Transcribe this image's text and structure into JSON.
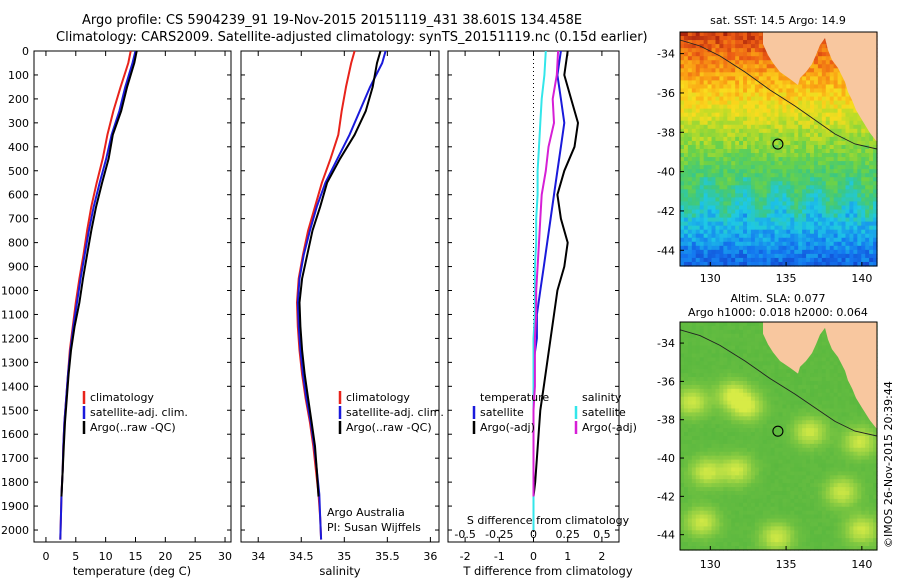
{
  "title": {
    "line1": "Argo profile: CS 5904239_91 19-Nov-2015 20151119_431 38.601S 134.458E",
    "line2": "Climatology: CARS2009. Satellite-adjusted climatology: synTS_20151119.nc (0.15d earlier)"
  },
  "colors": {
    "climatology": "#e8231b",
    "satellite": "#1a1adb",
    "argo": "#000000",
    "cyan": "#33e6ea",
    "magenta": "#d61fd6",
    "land": "#f8c79f"
  },
  "credits": {
    "argo_australia": "Argo Australia",
    "pi": "PI: Susan Wijffels",
    "imos": "©IMOS 26-Nov-2015 20:39:44"
  },
  "panels": {
    "temperature": {
      "xlabel": "temperature (deg C)",
      "legend": [
        "climatology",
        "satellite-adj. clim.",
        "Argo(..raw -QC)"
      ]
    },
    "salinity": {
      "xlabel": "salinity",
      "legend": [
        "climatology",
        "satellite-adj. clim.",
        "Argo(..raw -QC)"
      ]
    },
    "difference": {
      "xlabel_bottom": "T difference from climatology",
      "xlabel_top": "S difference from climatology",
      "legend_temp_title": "temperature",
      "legend_sal_title": "salinity",
      "legend_temp": [
        "satellite",
        "Argo(-adj)"
      ],
      "legend_sal": [
        "satellite",
        "Argo(-adj)"
      ]
    },
    "sst_map": {
      "title": "sat. SST: 14.5 Argo: 14.9",
      "xticks": [
        "130",
        "135",
        "140"
      ],
      "yticks": [
        "-34",
        "-36",
        "-38",
        "-40",
        "-42",
        "-44"
      ]
    },
    "sla_map": {
      "title_line1": "Altim. SLA: 0.077",
      "title_line2": "Argo h1000: 0.018 h2000: 0.064",
      "xticks": [
        "130",
        "135",
        "140"
      ],
      "yticks": [
        "-34",
        "-36",
        "-38",
        "-40",
        "-42",
        "-44"
      ]
    }
  },
  "chart_data": [
    {
      "type": "line",
      "title": "Argo profile: CS 5904239_91 19-Nov-2015 20151119_431 38.601S 134.458E",
      "xlabel": "temperature (deg C)",
      "ylabel": "",
      "xlim": [
        -2,
        31
      ],
      "ylim": [
        2050,
        0
      ],
      "xticks": [
        0,
        5,
        10,
        15,
        20,
        25,
        30
      ],
      "yticks": [
        0,
        100,
        200,
        300,
        400,
        500,
        600,
        700,
        800,
        900,
        1000,
        1100,
        1200,
        1300,
        1400,
        1500,
        1600,
        1700,
        1800,
        1900,
        2000
      ],
      "legend_position": "lower-center",
      "series": [
        {
          "name": "climatology",
          "color": "#e8231b",
          "x": [
            14.2,
            13.8,
            12.5,
            11.3,
            10.3,
            9.5,
            8.5,
            7.6,
            6.9,
            6.3,
            5.6,
            5.0,
            4.5,
            4.0,
            3.7,
            3.4,
            3.1,
            2.9,
            2.8,
            2.6,
            2.5,
            2.4
          ],
          "y": [
            0,
            50,
            150,
            250,
            350,
            450,
            550,
            650,
            750,
            850,
            950,
            1050,
            1150,
            1250,
            1350,
            1450,
            1550,
            1650,
            1750,
            1850,
            1950,
            2040
          ]
        },
        {
          "name": "satellite-adj. clim.",
          "color": "#1a1adb",
          "x": [
            15.0,
            14.5,
            13.3,
            12.3,
            11.0,
            10.1,
            9.0,
            8.0,
            7.2,
            6.5,
            5.8,
            5.2,
            4.6,
            4.1,
            3.7,
            3.4,
            3.1,
            2.9,
            2.8,
            2.6,
            2.5,
            2.4
          ],
          "y": [
            0,
            50,
            150,
            250,
            350,
            450,
            550,
            650,
            750,
            850,
            950,
            1050,
            1150,
            1250,
            1350,
            1450,
            1550,
            1650,
            1750,
            1850,
            1950,
            2040
          ]
        },
        {
          "name": "Argo(..raw -QC)",
          "color": "#000000",
          "x": [
            15.2,
            14.8,
            13.6,
            12.6,
            11.2,
            10.5,
            9.4,
            8.4,
            7.6,
            6.9,
            6.2,
            5.6,
            4.8,
            4.2,
            3.8,
            3.5,
            3.2,
            3.0,
            2.8,
            2.6
          ],
          "y": [
            0,
            50,
            150,
            250,
            350,
            450,
            550,
            650,
            750,
            850,
            950,
            1050,
            1150,
            1250,
            1350,
            1450,
            1550,
            1650,
            1750,
            1860
          ]
        }
      ]
    },
    {
      "type": "line",
      "xlabel": "salinity",
      "xlim": [
        33.8,
        36.1
      ],
      "ylim": [
        2050,
        0
      ],
      "xticks": [
        34,
        34.5,
        35,
        35.5,
        36
      ],
      "legend_position": "lower-right",
      "series": [
        {
          "name": "climatology",
          "color": "#e8231b",
          "x": [
            35.12,
            35.08,
            35.02,
            34.97,
            34.93,
            34.84,
            34.74,
            34.66,
            34.58,
            34.52,
            34.47,
            34.45,
            34.46,
            34.48,
            34.51,
            34.55,
            34.6,
            34.64,
            34.67,
            34.7,
            34.72,
            34.73
          ],
          "y": [
            0,
            50,
            150,
            250,
            350,
            450,
            550,
            650,
            750,
            850,
            950,
            1050,
            1150,
            1250,
            1350,
            1450,
            1550,
            1650,
            1750,
            1850,
            1950,
            2040
          ]
        },
        {
          "name": "satellite-adj. clim.",
          "color": "#1a1adb",
          "x": [
            35.48,
            35.44,
            35.3,
            35.18,
            35.06,
            34.92,
            34.78,
            34.68,
            34.6,
            34.53,
            34.48,
            34.46,
            34.47,
            34.49,
            34.52,
            34.56,
            34.61,
            34.65,
            34.68,
            34.71,
            34.72,
            34.73
          ],
          "y": [
            0,
            50,
            150,
            250,
            350,
            450,
            550,
            650,
            750,
            850,
            950,
            1050,
            1150,
            1250,
            1350,
            1450,
            1550,
            1650,
            1750,
            1850,
            1950,
            2040
          ]
        },
        {
          "name": "Argo(..raw -QC)",
          "color": "#000000",
          "x": [
            35.42,
            35.38,
            35.33,
            35.25,
            35.12,
            34.95,
            34.8,
            34.72,
            34.63,
            34.57,
            34.51,
            34.48,
            34.49,
            34.51,
            34.54,
            34.58,
            34.62,
            34.66,
            34.68,
            34.7
          ],
          "y": [
            0,
            50,
            150,
            250,
            350,
            450,
            550,
            650,
            750,
            850,
            950,
            1050,
            1150,
            1250,
            1350,
            1450,
            1550,
            1650,
            1750,
            1860
          ]
        }
      ]
    },
    {
      "type": "line",
      "xlabel": "T difference from climatology",
      "xlabel_top": "S difference from climatology",
      "xlim": [
        -2.5,
        2.5
      ],
      "xlim_top": [
        -0.625,
        0.625
      ],
      "ylim": [
        2050,
        0
      ],
      "xticks": [
        -2,
        -1,
        0,
        1,
        2
      ],
      "xticks_top": [
        -0.5,
        -0.25,
        0,
        0.25,
        0.5
      ],
      "legend_position": "lower-center",
      "series": [
        {
          "name": "satellite",
          "group": "temperature",
          "color": "#1a1adb",
          "x": [
            0.8,
            0.7,
            0.8,
            0.9,
            0.8,
            0.7,
            0.6,
            0.5,
            0.4,
            0.3,
            0.2,
            0.1,
            0.1,
            0.0,
            0.0,
            0.0,
            0.0,
            0.0,
            0.0,
            0.0,
            0.0
          ],
          "y": [
            0,
            100,
            200,
            300,
            400,
            500,
            600,
            700,
            800,
            900,
            1000,
            1100,
            1200,
            1300,
            1400,
            1500,
            1600,
            1700,
            1800,
            1900,
            2000
          ]
        },
        {
          "name": "Argo(-adj)",
          "group": "temperature",
          "color": "#000000",
          "x": [
            1.0,
            0.9,
            1.1,
            1.3,
            1.2,
            0.9,
            0.7,
            0.8,
            1.0,
            0.9,
            0.7,
            0.6,
            0.5,
            0.4,
            0.3,
            0.2,
            0.15,
            0.1,
            0.05,
            0.0
          ],
          "y": [
            0,
            100,
            200,
            300,
            400,
            500,
            600,
            700,
            800,
            900,
            1000,
            1100,
            1200,
            1300,
            1400,
            1500,
            1600,
            1700,
            1800,
            1860
          ]
        },
        {
          "name": "satellite",
          "group": "salinity",
          "color": "#33e6ea",
          "x": [
            0.09,
            0.08,
            0.06,
            0.05,
            0.04,
            0.03,
            0.03,
            0.02,
            0.02,
            0.01,
            0.01,
            0.01,
            0.0,
            0.0,
            0.0,
            0.0,
            0.0,
            0.0,
            0.0,
            0.0,
            0.0
          ],
          "y": [
            0,
            100,
            200,
            300,
            400,
            500,
            600,
            700,
            800,
            900,
            1000,
            1100,
            1200,
            1300,
            1400,
            1500,
            1600,
            1700,
            1800,
            1900,
            2000
          ]
        },
        {
          "name": "Argo(-adj)",
          "group": "salinity",
          "color": "#d61fd6",
          "x": [
            0.18,
            0.17,
            0.14,
            0.15,
            0.11,
            0.09,
            0.06,
            0.05,
            0.04,
            0.03,
            0.02,
            0.02,
            0.01,
            0.01,
            0.01,
            0.0,
            0.0,
            0.0,
            0.0,
            0.0
          ],
          "y": [
            0,
            100,
            200,
            300,
            400,
            500,
            600,
            700,
            800,
            900,
            1000,
            1100,
            1200,
            1300,
            1400,
            1500,
            1600,
            1700,
            1800,
            1860
          ]
        }
      ]
    },
    {
      "type": "heatmap",
      "title": "sat. SST: 14.5 Argo: 14.9",
      "xlim": [
        128,
        141
      ],
      "ylim": [
        -44.8,
        -32.9
      ],
      "xticks": [
        130,
        135,
        140
      ],
      "yticks": [
        -34,
        -36,
        -38,
        -40,
        -42,
        -44
      ],
      "marker": {
        "lon": 134.458,
        "lat": -38.601
      }
    },
    {
      "type": "heatmap",
      "title": "Altim. SLA: 0.077",
      "subtitle": "Argo h1000: 0.018 h2000: 0.064",
      "xlim": [
        128,
        141
      ],
      "ylim": [
        -44.8,
        -32.9
      ],
      "xticks": [
        130,
        135,
        140
      ],
      "yticks": [
        -34,
        -36,
        -38,
        -40,
        -42,
        -44
      ],
      "marker": {
        "lon": 134.458,
        "lat": -38.601
      }
    }
  ]
}
